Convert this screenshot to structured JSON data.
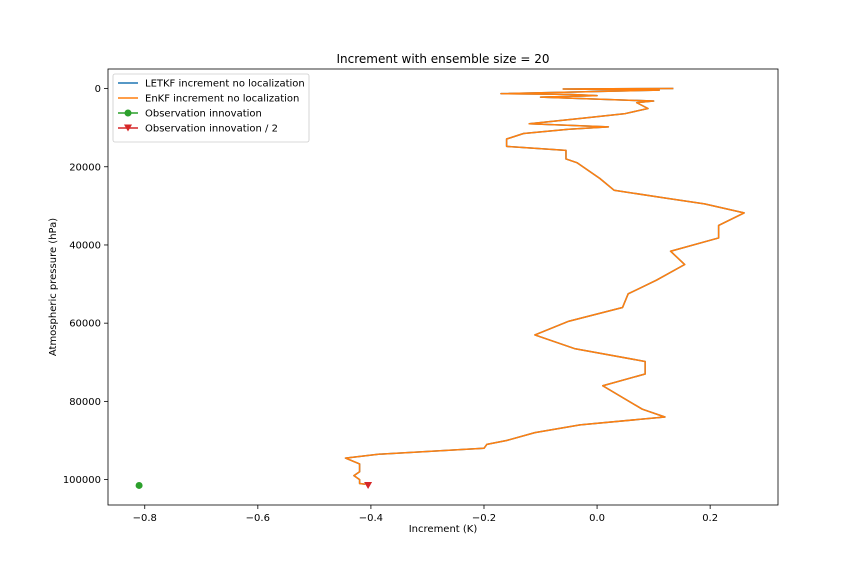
{
  "chart_data": {
    "type": "line",
    "title": "Increment with ensemble size = 20",
    "xlabel": "Increment (K)",
    "ylabel": "Atmospheric pressure (hPa)",
    "xlim": [
      -0.865,
      0.32
    ],
    "ylim": [
      106500,
      -5000
    ],
    "y_inverted": true,
    "grid": false,
    "legend_position": "upper-left",
    "x_ticks": [
      -0.8,
      -0.6,
      -0.4,
      -0.2,
      0.0,
      0.2
    ],
    "x_tick_labels": [
      "−0.8",
      "−0.6",
      "−0.4",
      "−0.2",
      "0.0",
      "0.2"
    ],
    "y_ticks": [
      0,
      20000,
      40000,
      60000,
      80000,
      100000
    ],
    "y_tick_labels": [
      "0",
      "20000",
      "40000",
      "60000",
      "80000",
      "100000"
    ],
    "series": [
      {
        "name": "LETKF increment no localization",
        "kind": "line",
        "color": "#1f77b4",
        "x": [
          0.135,
          -0.06,
          0.11,
          -0.17,
          -0.05,
          0.0,
          -0.1,
          0.1,
          0.07,
          0.09,
          0.05,
          -0.02,
          -0.12,
          0.02,
          -0.05,
          -0.13,
          -0.16,
          -0.16,
          -0.055,
          -0.055,
          -0.035,
          0.005,
          0.03,
          0.12,
          0.19,
          0.26,
          0.215,
          0.215,
          0.13,
          0.155,
          0.105,
          0.055,
          0.045,
          -0.05,
          -0.11,
          -0.04,
          0.085,
          0.085,
          0.01,
          0.08,
          0.12,
          -0.03,
          -0.11,
          -0.16,
          -0.195,
          -0.2,
          -0.385,
          -0.445,
          -0.42,
          -0.42,
          -0.43,
          -0.42,
          -0.42,
          -0.41
        ],
        "y": [
          0,
          100,
          400,
          1300,
          1500,
          1800,
          2200,
          3200,
          3600,
          5100,
          6400,
          7500,
          9000,
          9800,
          10400,
          11500,
          12900,
          14800,
          15800,
          18000,
          19000,
          23000,
          26000,
          28000,
          29500,
          31800,
          35000,
          38200,
          41600,
          45000,
          49000,
          52500,
          56000,
          59500,
          63000,
          66500,
          69800,
          73000,
          76000,
          82000,
          84000,
          86000,
          88000,
          90000,
          91000,
          92000,
          93500,
          94500,
          96000,
          98000,
          99000,
          100000,
          101000,
          101200
        ]
      },
      {
        "name": "EnKF increment no localization",
        "kind": "line",
        "color": "#ff7f0e",
        "x": [
          0.135,
          -0.06,
          0.11,
          -0.17,
          -0.05,
          0.0,
          -0.1,
          0.1,
          0.07,
          0.09,
          0.05,
          -0.02,
          -0.12,
          0.02,
          -0.05,
          -0.13,
          -0.16,
          -0.16,
          -0.055,
          -0.055,
          -0.035,
          0.005,
          0.03,
          0.12,
          0.19,
          0.26,
          0.215,
          0.215,
          0.13,
          0.155,
          0.105,
          0.055,
          0.045,
          -0.05,
          -0.11,
          -0.04,
          0.085,
          0.085,
          0.01,
          0.08,
          0.12,
          -0.03,
          -0.11,
          -0.16,
          -0.195,
          -0.2,
          -0.385,
          -0.445,
          -0.42,
          -0.42,
          -0.43,
          -0.42,
          -0.42,
          -0.41
        ],
        "y": [
          0,
          100,
          400,
          1300,
          1500,
          1800,
          2200,
          3200,
          3600,
          5100,
          6400,
          7500,
          9000,
          9800,
          10400,
          11500,
          12900,
          14800,
          15800,
          18000,
          19000,
          23000,
          26000,
          28000,
          29500,
          31800,
          35000,
          38200,
          41600,
          45000,
          49000,
          52500,
          56000,
          59500,
          63000,
          66500,
          69800,
          73000,
          76000,
          82000,
          84000,
          86000,
          88000,
          90000,
          91000,
          92000,
          93500,
          94500,
          96000,
          98000,
          99000,
          100000,
          101000,
          101200
        ]
      },
      {
        "name": "Observation innovation",
        "kind": "marker",
        "marker": "circle",
        "color": "#2ca02c",
        "x": [
          -0.81
        ],
        "y": [
          101500
        ]
      },
      {
        "name": "Observation innovation / 2",
        "kind": "marker",
        "marker": "triangle-down",
        "color": "#d62728",
        "x": [
          -0.405
        ],
        "y": [
          101500
        ]
      }
    ]
  }
}
